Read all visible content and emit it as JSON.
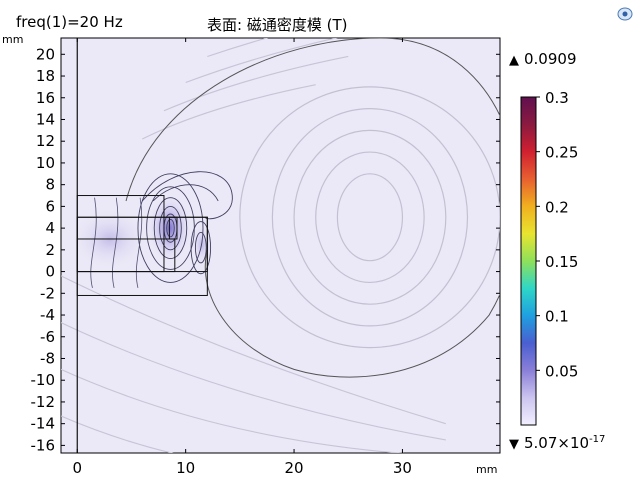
{
  "header": {
    "freq_label": "freq(1)=20 Hz",
    "title": "表面: 磁通密度模 (T)"
  },
  "axes": {
    "unit_y": "mm",
    "unit_x": "mm"
  },
  "colorbar": {
    "max_marker": "0.0909",
    "min_marker_base": "5.07×10",
    "min_marker_exp": "-17",
    "ticks": [
      "0.3",
      "0.25",
      "0.2",
      "0.15",
      "0.1",
      "0.05"
    ],
    "tick_values": [
      0.3,
      0.25,
      0.2,
      0.15,
      0.1,
      0.05
    ],
    "range": [
      5.07e-17,
      0.3
    ],
    "colormap": [
      "#f3efff",
      "#ccc5ef",
      "#8a7fd8",
      "#4a5fd0",
      "#1f9fe0",
      "#2fd6c6",
      "#8fe05a",
      "#e8e430",
      "#f0b020",
      "#e86030",
      "#d02030",
      "#8a1a40",
      "#601050"
    ]
  },
  "chart_data": {
    "type": "heatmap",
    "title": "表面: 磁通密度模 (T)",
    "xlabel": "mm",
    "ylabel": "mm",
    "xlim": [
      -1.5,
      39
    ],
    "ylim": [
      -16.7,
      21.5
    ],
    "x_ticks": [
      0,
      10,
      20,
      30
    ],
    "y_ticks": [
      20,
      18,
      16,
      14,
      12,
      10,
      8,
      6,
      4,
      2,
      0,
      -2,
      -4,
      -6,
      -8,
      -10,
      -12,
      -14,
      -16
    ],
    "surface_max": 0.0909,
    "surface_min": 5.07e-17,
    "colorbar_range": [
      5.07e-17,
      0.3
    ],
    "geometry_rectangles": [
      {
        "x0": 0,
        "y0": 0,
        "x1": 8,
        "y1": 7
      },
      {
        "x0": 0,
        "y0": 0,
        "x1": 12,
        "y1": 5
      },
      {
        "x0": 0,
        "y0": -2.2,
        "x1": 12,
        "y1": 5
      },
      {
        "x0": 0,
        "y0": 0,
        "x1": 9,
        "y1": 3
      },
      {
        "x0": 8.5,
        "y0": 3,
        "x1": 9.2,
        "y1": 5
      }
    ],
    "field_line_ellipses": [
      {
        "cx": 27,
        "cy": 5,
        "rx": 12,
        "ry": 12
      },
      {
        "cx": 27,
        "cy": 5,
        "rx": 9,
        "ry": 10
      },
      {
        "cx": 27,
        "cy": 5,
        "rx": 7,
        "ry": 8
      },
      {
        "cx": 27,
        "cy": 5,
        "rx": 5,
        "ry": 6
      },
      {
        "cx": 27,
        "cy": 5,
        "rx": 3,
        "ry": 4
      }
    ]
  }
}
